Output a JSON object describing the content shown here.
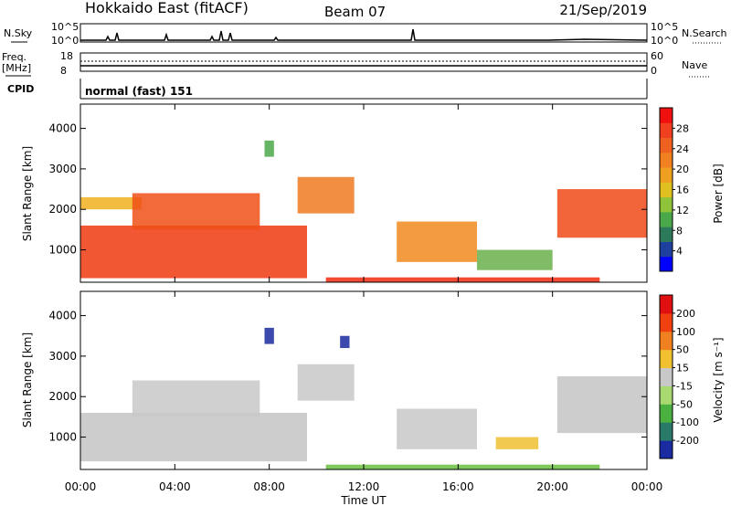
{
  "header": {
    "site": "Hokkaido East (fitACF)",
    "beam": "Beam 07",
    "date": "21/Sep/2019"
  },
  "noise_panel": {
    "left_label": "N.Sky",
    "right_label": "N.Search",
    "left_ticks": [
      "10^5",
      "10^0"
    ],
    "right_ticks": [
      "10^5",
      "10^0"
    ]
  },
  "freq_panel": {
    "left_label_line1": "Freq.",
    "left_label_line2": "[MHz]",
    "right_label": "Nave",
    "left_ticks": [
      "18",
      "8"
    ],
    "right_ticks": [
      "60",
      "0"
    ]
  },
  "cpid_panel": {
    "label": "CPID",
    "text": "normal (fast) 151"
  },
  "chart_data": [
    {
      "type": "heatmap",
      "name": "power",
      "ylabel": "Slant Range [km]",
      "y_ticks": [
        "4000",
        "3000",
        "2000",
        "1000"
      ],
      "y_tick_values": [
        4000,
        3000,
        2000,
        1000
      ],
      "ylim": [
        200,
        4600
      ],
      "xlim_hours": [
        0,
        24
      ],
      "colorbar_label": "Power [dB]",
      "colorbar_ticks": [
        "28",
        "24",
        "20",
        "16",
        "12",
        "8",
        "4"
      ],
      "colorbar_colors": [
        "#0000ff",
        "#1f3f9e",
        "#2d7a5a",
        "#4aa84a",
        "#8fc43a",
        "#e0c020",
        "#f0a020",
        "#f08020",
        "#f06020",
        "#f04020",
        "#f01010"
      ],
      "regions": [
        {
          "t": [
            0.0,
            9.6
          ],
          "r": [
            300,
            1600
          ],
          "color": "#f03a10"
        },
        {
          "t": [
            0.0,
            2.6
          ],
          "r": [
            2000,
            2300
          ],
          "color": "#f0b020"
        },
        {
          "t": [
            2.2,
            7.6
          ],
          "r": [
            1500,
            2400
          ],
          "color": "#f05018"
        },
        {
          "t": [
            7.8,
            8.2
          ],
          "r": [
            3300,
            3700
          ],
          "color": "#4aa84a"
        },
        {
          "t": [
            9.2,
            11.6
          ],
          "r": [
            1900,
            2800
          ],
          "color": "#f07a20"
        },
        {
          "t": [
            13.4,
            16.8
          ],
          "r": [
            700,
            1700
          ],
          "color": "#f08a20"
        },
        {
          "t": [
            16.8,
            20.0
          ],
          "r": [
            500,
            1000
          ],
          "color": "#6ab04a"
        },
        {
          "t": [
            20.2,
            24.0
          ],
          "r": [
            1300,
            2500
          ],
          "color": "#f04a18"
        },
        {
          "t": [
            10.4,
            22.0
          ],
          "r": [
            200,
            320
          ],
          "color": "#f02a10"
        }
      ]
    },
    {
      "type": "heatmap",
      "name": "velocity",
      "ylabel": "Slant Range [km]",
      "y_ticks": [
        "4000",
        "3000",
        "2000",
        "1000"
      ],
      "y_tick_values": [
        4000,
        3000,
        2000,
        1000
      ],
      "ylim": [
        200,
        4600
      ],
      "xlim_hours": [
        0,
        24
      ],
      "colorbar_label": "Velocity [m s⁻¹]",
      "colorbar_ticks": [
        "200",
        "100",
        "50",
        "15",
        "-15",
        "-50",
        "-100",
        "-200"
      ],
      "colorbar_colors": [
        "#1a2aa0",
        "#2a7a6a",
        "#4ab040",
        "#a8d870",
        "#c8c8c8",
        "#f0c030",
        "#f08020",
        "#f04010",
        "#e01010"
      ],
      "regions": [
        {
          "t": [
            0.0,
            9.6
          ],
          "r": [
            400,
            1600
          ],
          "color": "#c4c4c4"
        },
        {
          "t": [
            2.2,
            7.6
          ],
          "r": [
            1500,
            2400
          ],
          "color": "#c8c8c8"
        },
        {
          "t": [
            7.8,
            8.2
          ],
          "r": [
            3300,
            3700
          ],
          "color": "#1a2aa0"
        },
        {
          "t": [
            11.0,
            11.4
          ],
          "r": [
            3200,
            3500
          ],
          "color": "#1a2aa0"
        },
        {
          "t": [
            9.2,
            11.6
          ],
          "r": [
            1900,
            2800
          ],
          "color": "#c8c8c8"
        },
        {
          "t": [
            13.4,
            16.8
          ],
          "r": [
            700,
            1700
          ],
          "color": "#c8c8c8"
        },
        {
          "t": [
            17.6,
            19.4
          ],
          "r": [
            700,
            1000
          ],
          "color": "#f0c030"
        },
        {
          "t": [
            20.2,
            24.0
          ],
          "r": [
            1100,
            2500
          ],
          "color": "#c4c4c4"
        },
        {
          "t": [
            10.4,
            22.0
          ],
          "r": [
            200,
            320
          ],
          "color": "#6ac040"
        }
      ]
    }
  ],
  "time_axis": {
    "ticks": [
      "00:00",
      "04:00",
      "08:00",
      "12:00",
      "16:00",
      "20:00",
      "00:00"
    ],
    "tick_hours": [
      0,
      4,
      8,
      12,
      16,
      20,
      24
    ],
    "label": "Time UT"
  }
}
